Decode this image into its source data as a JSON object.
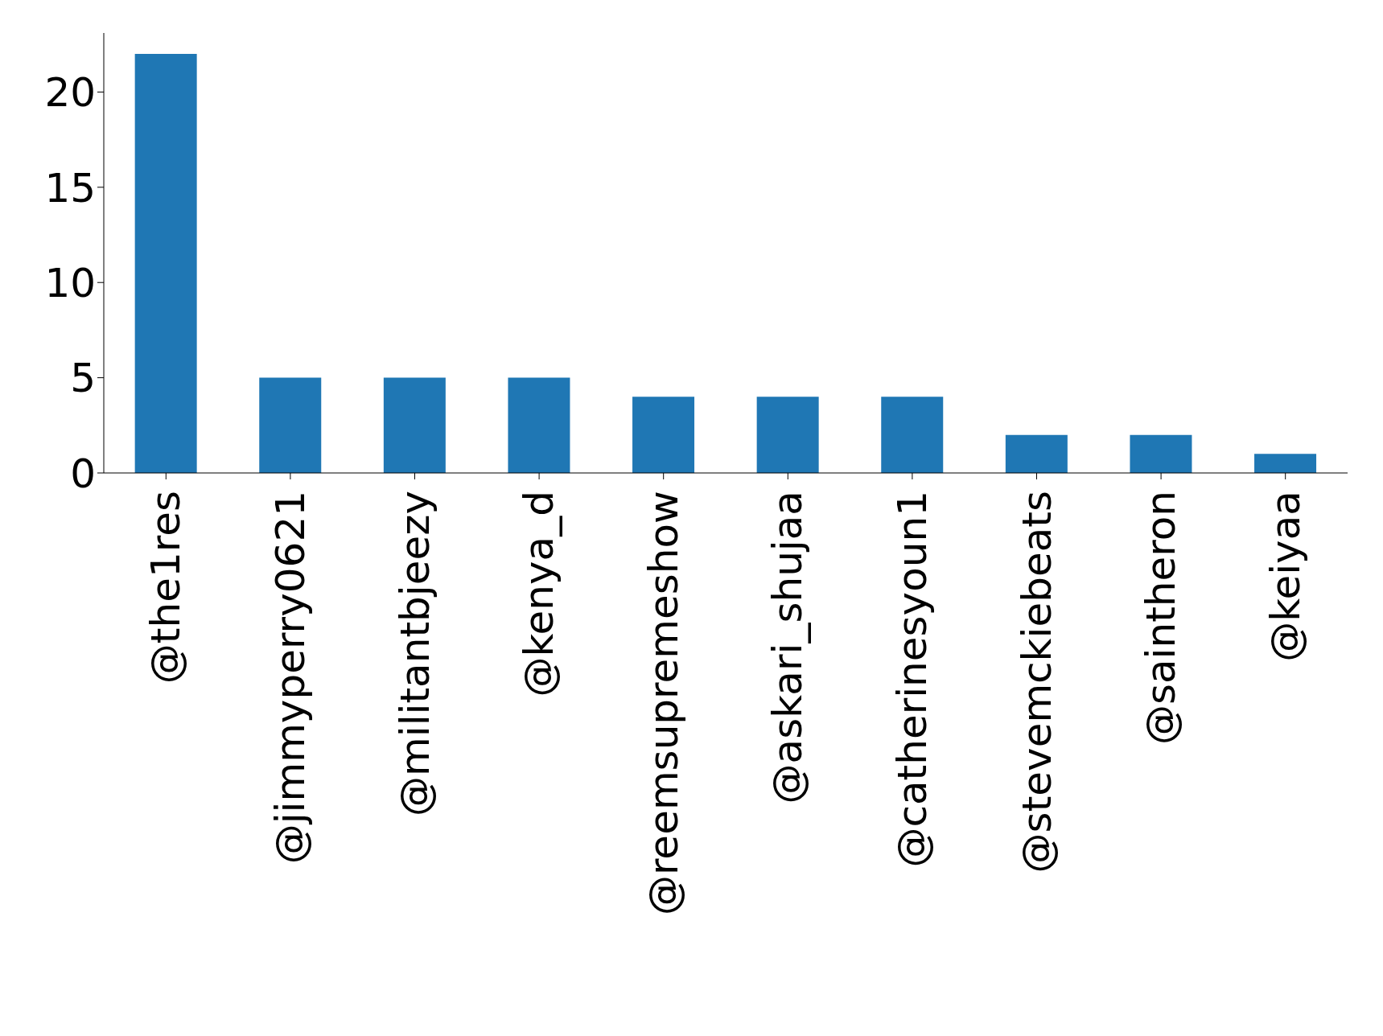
{
  "chart_data": {
    "type": "bar",
    "categories": [
      "@the1res",
      "@jimmyperry0621",
      "@militantbjeezy",
      "@kenya_d",
      "@reemsupremeshow",
      "@askari_shujaa",
      "@catherinesyoun1",
      "@stevemckiebeats",
      "@saintheron",
      "@keiyaa"
    ],
    "values": [
      22,
      5,
      5,
      5,
      4,
      4,
      4,
      2,
      2,
      1
    ],
    "color": "#1f77b4",
    "ylim": [
      0,
      23.1
    ],
    "yticks": [
      0,
      5,
      10,
      15,
      20
    ],
    "grid": false,
    "legend": false
  }
}
